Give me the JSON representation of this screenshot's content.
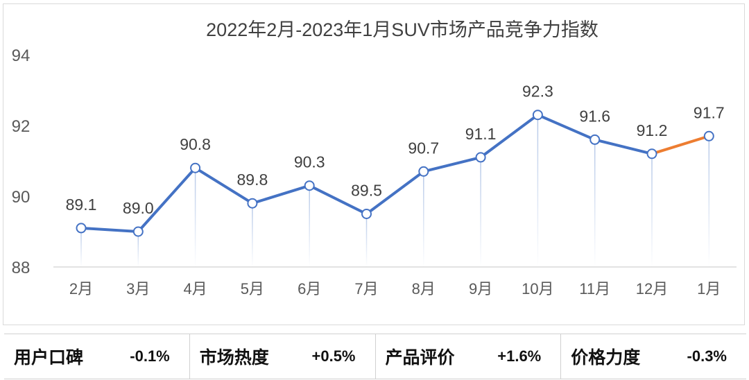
{
  "chart_data": {
    "type": "line",
    "title": "2022年2月-2023年1月SUV市场产品竞争力指数",
    "categories": [
      "2月",
      "3月",
      "4月",
      "5月",
      "6月",
      "7月",
      "8月",
      "9月",
      "10月",
      "11月",
      "12月",
      "1月"
    ],
    "values": [
      89.1,
      89.0,
      90.8,
      89.8,
      90.3,
      89.5,
      90.7,
      91.1,
      92.3,
      91.6,
      91.2,
      91.7
    ],
    "data_labels": [
      "89.1",
      "89.0",
      "90.8",
      "89.8",
      "90.3",
      "89.5",
      "90.7",
      "91.1",
      "92.3",
      "91.6",
      "91.2",
      "91.7"
    ],
    "ylim": [
      88,
      94
    ],
    "yticks": [
      "88",
      "90",
      "92",
      "94"
    ],
    "xlabel": "",
    "ylabel": "",
    "grid": false,
    "colors": {
      "line": "#4472C4",
      "last_segment": "#ED7D31"
    }
  },
  "stats": [
    {
      "label": "用户口碑",
      "value": "-0.1%"
    },
    {
      "label": "市场热度",
      "value": "+0.5%"
    },
    {
      "label": "产品评价",
      "value": "+1.6%"
    },
    {
      "label": "价格力度",
      "value": "-0.3%"
    }
  ]
}
